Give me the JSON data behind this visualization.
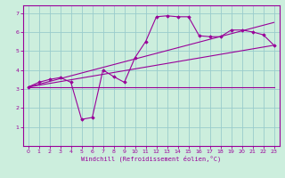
{
  "bg_color": "#cceedd",
  "line_color": "#990099",
  "grid_color": "#99cccc",
  "xlabel": "Windchill (Refroidissement éolien,°C)",
  "xlim": [
    -0.5,
    23.5
  ],
  "ylim": [
    0,
    7.4
  ],
  "xticks": [
    0,
    1,
    2,
    3,
    4,
    5,
    6,
    7,
    8,
    9,
    10,
    11,
    12,
    13,
    14,
    15,
    16,
    17,
    18,
    19,
    20,
    21,
    22,
    23
  ],
  "yticks": [
    1,
    2,
    3,
    4,
    5,
    6,
    7
  ],
  "line1": {
    "x": [
      0,
      23
    ],
    "y": [
      3.1,
      3.1
    ]
  },
  "line2": {
    "x": [
      0,
      23
    ],
    "y": [
      3.1,
      6.5
    ]
  },
  "line3": {
    "x": [
      0,
      23
    ],
    "y": [
      3.1,
      5.3
    ]
  },
  "curve": {
    "x": [
      0,
      1,
      2,
      3,
      4,
      5,
      6,
      7,
      8,
      9,
      10,
      11,
      12,
      13,
      14,
      15,
      16,
      17,
      18,
      19,
      20,
      21,
      22,
      23
    ],
    "y": [
      3.1,
      3.35,
      3.5,
      3.6,
      3.35,
      1.4,
      1.5,
      4.0,
      3.65,
      3.35,
      4.65,
      5.5,
      6.8,
      6.85,
      6.8,
      6.8,
      5.8,
      5.75,
      5.75,
      6.1,
      6.1,
      6.0,
      5.85,
      5.3
    ]
  }
}
